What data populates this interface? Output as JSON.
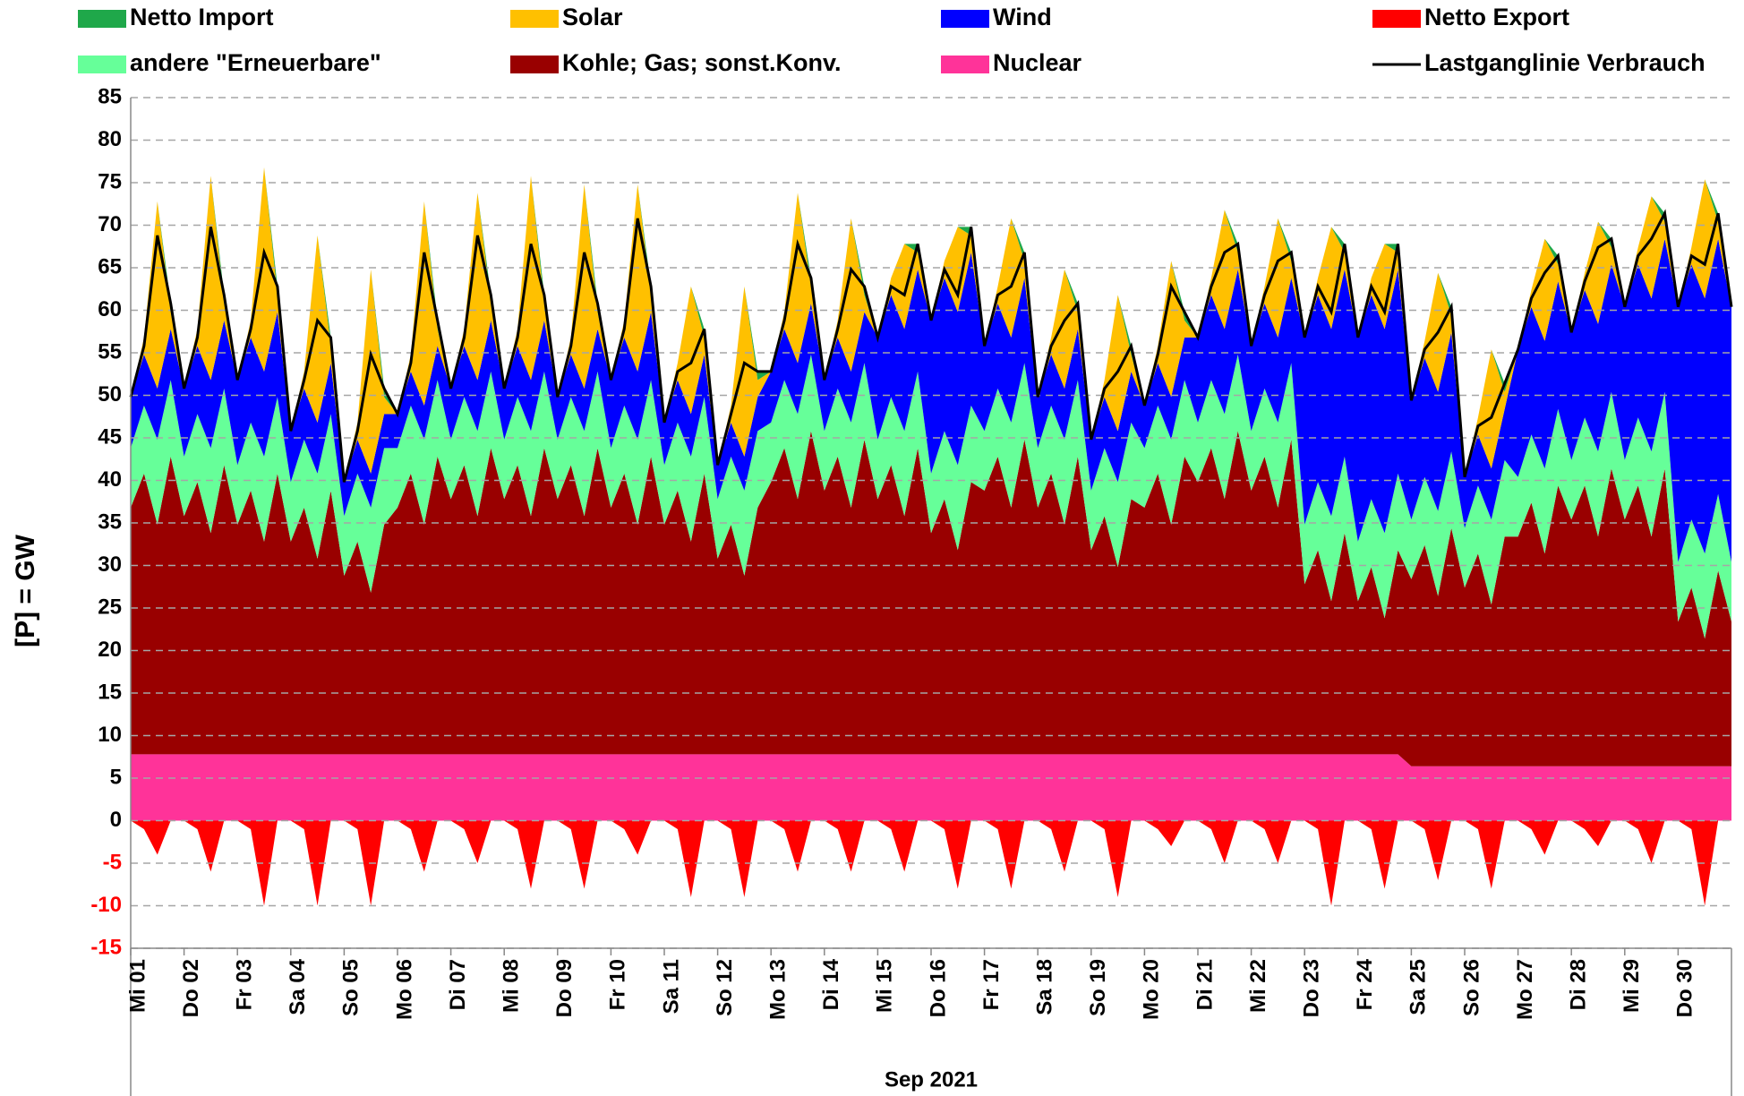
{
  "chart_data": {
    "type": "stacked_area",
    "xlabel": "Sep 2021",
    "ylabel": "[P]  =  GW",
    "xlim": [
      1,
      31
    ],
    "xticks": [
      {
        "value": 1,
        "label": "Mi 01"
      },
      {
        "value": 2,
        "label": "Do 02"
      },
      {
        "value": 3,
        "label": "Fr 03"
      },
      {
        "value": 4,
        "label": "Sa 04"
      },
      {
        "value": 5,
        "label": "So 05"
      },
      {
        "value": 6,
        "label": "Mo 06"
      },
      {
        "value": 7,
        "label": "Di 07"
      },
      {
        "value": 8,
        "label": "Mi 08"
      },
      {
        "value": 9,
        "label": "Do 09"
      },
      {
        "value": 10,
        "label": "Fr 10"
      },
      {
        "value": 11,
        "label": "Sa 11"
      },
      {
        "value": 12,
        "label": "So 12"
      },
      {
        "value": 13,
        "label": "Mo 13"
      },
      {
        "value": 14,
        "label": "Di 14"
      },
      {
        "value": 15,
        "label": "Mi 15"
      },
      {
        "value": 16,
        "label": "Do 16"
      },
      {
        "value": 17,
        "label": "Fr 17"
      },
      {
        "value": 18,
        "label": "Sa 18"
      },
      {
        "value": 19,
        "label": "So 19"
      },
      {
        "value": 20,
        "label": "Mo 20"
      },
      {
        "value": 21,
        "label": "Di 21"
      },
      {
        "value": 22,
        "label": "Mi 22"
      },
      {
        "value": 23,
        "label": "Do 23"
      },
      {
        "value": 24,
        "label": "Fr 24"
      },
      {
        "value": 25,
        "label": "Sa 25"
      },
      {
        "value": 26,
        "label": "So 26"
      },
      {
        "value": 27,
        "label": "Mo 27"
      },
      {
        "value": 28,
        "label": "Di 28"
      },
      {
        "value": 29,
        "label": "Mi 29"
      },
      {
        "value": 30,
        "label": "Do 30"
      }
    ],
    "ylim": [
      -15,
      85
    ],
    "yticks": [
      85,
      80,
      75,
      70,
      65,
      60,
      55,
      50,
      45,
      40,
      35,
      30,
      25,
      20,
      15,
      10,
      5,
      0,
      -5,
      -10,
      -15
    ],
    "grid": true,
    "x": [
      1,
      1.25,
      1.5,
      1.75,
      2,
      2.25,
      2.5,
      2.75,
      3,
      3.25,
      3.5,
      3.75,
      4,
      4.25,
      4.5,
      4.75,
      5,
      5.25,
      5.5,
      5.75,
      6,
      6.25,
      6.5,
      6.75,
      7,
      7.25,
      7.5,
      7.75,
      8,
      8.25,
      8.5,
      8.75,
      9,
      9.25,
      9.5,
      9.75,
      10,
      10.25,
      10.5,
      10.75,
      11,
      11.25,
      11.5,
      11.75,
      12,
      12.25,
      12.5,
      12.75,
      13,
      13.25,
      13.5,
      13.75,
      14,
      14.25,
      14.5,
      14.75,
      15,
      15.25,
      15.5,
      15.75,
      16,
      16.25,
      16.5,
      16.75,
      17,
      17.25,
      17.5,
      17.75,
      18,
      18.25,
      18.5,
      18.75,
      19,
      19.25,
      19.5,
      19.75,
      20,
      20.25,
      20.5,
      20.75,
      21,
      21.25,
      21.5,
      21.75,
      22,
      22.25,
      22.5,
      22.75,
      23,
      23.25,
      23.5,
      23.75,
      24,
      24.25,
      24.5,
      24.75,
      25,
      25.25,
      25.5,
      25.75,
      26,
      26.25,
      26.5,
      26.75,
      27,
      27.25,
      27.5,
      27.75,
      28,
      28.25,
      28.5,
      28.75,
      29,
      29.25,
      29.5,
      29.75,
      30,
      30.25,
      30.5,
      30.75,
      31
    ],
    "series": [
      {
        "name": "Netto Import",
        "color": "#1fa84a",
        "values": [
          0,
          0,
          0,
          1,
          0,
          0,
          0,
          1,
          0,
          0,
          0,
          1,
          0,
          0,
          0,
          1,
          0,
          0,
          0,
          1,
          0,
          0,
          0,
          1,
          0,
          0,
          0,
          1,
          0,
          0,
          0,
          1,
          0,
          0,
          0,
          1,
          0,
          0,
          0,
          1,
          0,
          0,
          0,
          1,
          0,
          0,
          0,
          1,
          0,
          0,
          0,
          1,
          0,
          0,
          0,
          1,
          0,
          0,
          0,
          1,
          0,
          0,
          0,
          1,
          0,
          0,
          0,
          1,
          0,
          0,
          0,
          1,
          0,
          0,
          0,
          1,
          0,
          0,
          0,
          1,
          0,
          0,
          0,
          1,
          0,
          0,
          0,
          1,
          0,
          0,
          0,
          1,
          0,
          0,
          0,
          1,
          0,
          0,
          0,
          1,
          0,
          0,
          0,
          1,
          0,
          0,
          0,
          1,
          0,
          0,
          0,
          1,
          0,
          0,
          0,
          1,
          0,
          0,
          0,
          1,
          0
        ]
      },
      {
        "name": "Solar",
        "color": "#ffc000",
        "values": [
          0,
          2,
          22,
          2,
          0,
          2,
          24,
          2,
          0,
          2,
          24,
          2,
          0,
          2,
          22,
          2,
          0,
          2,
          24,
          2,
          0,
          2,
          24,
          2,
          0,
          2,
          22,
          2,
          0,
          2,
          24,
          2,
          0,
          2,
          24,
          2,
          0,
          2,
          22,
          2,
          0,
          2,
          15,
          2,
          0,
          2,
          20,
          2,
          0,
          2,
          20,
          2,
          0,
          2,
          18,
          2,
          0,
          2,
          10,
          2,
          0,
          2,
          10,
          2,
          0,
          2,
          14,
          2,
          0,
          2,
          14,
          2,
          0,
          2,
          16,
          2,
          0,
          2,
          16,
          2,
          0,
          2,
          14,
          2,
          0,
          2,
          14,
          2,
          0,
          2,
          12,
          2,
          0,
          2,
          10,
          2,
          0,
          2,
          14,
          2,
          0,
          2,
          14,
          2,
          0,
          2,
          12,
          2,
          0,
          2,
          12,
          2,
          0,
          2,
          12,
          2,
          0,
          2,
          14,
          2,
          0
        ]
      },
      {
        "name": "Wind",
        "color": "#0000ff",
        "values": [
          6,
          6,
          6,
          6,
          8,
          8,
          8,
          8,
          10,
          10,
          10,
          10,
          6,
          6,
          6,
          6,
          4,
          4,
          4,
          4,
          4,
          4,
          4,
          4,
          6,
          6,
          6,
          6,
          6,
          6,
          6,
          6,
          5,
          5,
          5,
          5,
          8,
          8,
          8,
          8,
          5,
          5,
          5,
          5,
          4,
          4,
          4,
          4,
          6,
          6,
          6,
          6,
          6,
          6,
          6,
          6,
          12,
          12,
          12,
          12,
          18,
          18,
          18,
          18,
          10,
          10,
          10,
          10,
          6,
          6,
          6,
          6,
          6,
          6,
          6,
          6,
          5,
          5,
          5,
          5,
          10,
          10,
          10,
          10,
          10,
          10,
          10,
          10,
          22,
          22,
          22,
          22,
          24,
          24,
          24,
          24,
          14,
          14,
          14,
          14,
          6,
          6,
          6,
          6,
          15,
          15,
          15,
          15,
          15,
          15,
          15,
          15,
          18,
          18,
          18,
          18,
          30,
          30,
          30,
          30,
          30
        ]
      },
      {
        "name": "Netto Export",
        "color": "#ff0000",
        "values": [
          0,
          -1,
          -4,
          0,
          0,
          -1,
          -6,
          0,
          0,
          -1,
          -10,
          0,
          0,
          -1,
          -10,
          0,
          0,
          -1,
          -10,
          0,
          0,
          -1,
          -6,
          0,
          0,
          -1,
          -5,
          0,
          0,
          -1,
          -8,
          0,
          0,
          -1,
          -8,
          0,
          0,
          -1,
          -4,
          0,
          0,
          -1,
          -9,
          0,
          0,
          -1,
          -9,
          0,
          0,
          -1,
          -6,
          0,
          0,
          -1,
          -6,
          0,
          0,
          -1,
          -6,
          0,
          0,
          -1,
          -8,
          0,
          0,
          -1,
          -8,
          0,
          0,
          -1,
          -6,
          0,
          0,
          -1,
          -9,
          0,
          0,
          -1,
          -3,
          0,
          0,
          -1,
          -5,
          0,
          0,
          -1,
          -5,
          0,
          0,
          -1,
          -10,
          0,
          0,
          -1,
          -8,
          0,
          0,
          -1,
          -7,
          0,
          0,
          -1,
          -8,
          0,
          0,
          -1,
          -4,
          0,
          0,
          -1,
          -3,
          0,
          0,
          -1,
          -5,
          0,
          0,
          -1,
          -10,
          0,
          0
        ]
      },
      {
        "name": "andere \"Erneuerbare\"",
        "color": "#66ff99",
        "values": [
          7,
          8,
          10,
          9,
          7,
          8,
          10,
          9,
          7,
          8,
          10,
          9,
          7,
          8,
          10,
          9,
          7,
          8,
          10,
          9,
          7,
          8,
          10,
          9,
          7,
          8,
          10,
          9,
          7,
          8,
          10,
          9,
          7,
          8,
          10,
          9,
          7,
          8,
          10,
          9,
          7,
          8,
          10,
          9,
          7,
          8,
          10,
          9,
          7,
          8,
          10,
          9,
          7,
          8,
          10,
          9,
          7,
          8,
          10,
          9,
          7,
          8,
          10,
          9,
          7,
          8,
          10,
          9,
          7,
          8,
          10,
          9,
          7,
          8,
          10,
          9,
          7,
          8,
          10,
          9,
          7,
          8,
          10,
          9,
          7,
          8,
          10,
          9,
          7,
          8,
          10,
          9,
          7,
          8,
          10,
          9,
          7,
          8,
          10,
          9,
          7,
          8,
          10,
          9,
          7,
          8,
          10,
          9,
          7,
          8,
          10,
          9,
          7,
          8,
          10,
          9,
          7,
          8,
          10,
          9,
          7
        ]
      },
      {
        "name": "Kohle; Gas; sonst.Konv.",
        "color": "#990000",
        "values": [
          29,
          33,
          27,
          35,
          28,
          32,
          26,
          34,
          27,
          31,
          25,
          33,
          25,
          29,
          23,
          31,
          21,
          25,
          19,
          27,
          29,
          33,
          27,
          35,
          30,
          34,
          28,
          36,
          30,
          34,
          28,
          36,
          30,
          34,
          28,
          36,
          29,
          33,
          27,
          35,
          27,
          31,
          25,
          33,
          23,
          27,
          21,
          29,
          32,
          36,
          30,
          38,
          31,
          35,
          29,
          37,
          30,
          34,
          28,
          36,
          26,
          30,
          24,
          32,
          31,
          35,
          29,
          37,
          29,
          33,
          27,
          35,
          24,
          28,
          22,
          30,
          29,
          33,
          27,
          35,
          32,
          36,
          30,
          38,
          31,
          35,
          29,
          37,
          20,
          24,
          18,
          26,
          18,
          22,
          16,
          24,
          22,
          26,
          20,
          28,
          21,
          25,
          19,
          27,
          27,
          31,
          25,
          33,
          29,
          33,
          27,
          35,
          29,
          33,
          27,
          35,
          17,
          21,
          15,
          23,
          17
        ]
      },
      {
        "name": "Nuclear",
        "color": "#ff3399",
        "values": [
          7.8,
          7.8,
          7.8,
          7.8,
          7.8,
          7.8,
          7.8,
          7.8,
          7.8,
          7.8,
          7.8,
          7.8,
          7.8,
          7.8,
          7.8,
          7.8,
          7.8,
          7.8,
          7.8,
          7.8,
          7.8,
          7.8,
          7.8,
          7.8,
          7.8,
          7.8,
          7.8,
          7.8,
          7.8,
          7.8,
          7.8,
          7.8,
          7.8,
          7.8,
          7.8,
          7.8,
          7.8,
          7.8,
          7.8,
          7.8,
          7.8,
          7.8,
          7.8,
          7.8,
          7.8,
          7.8,
          7.8,
          7.8,
          7.8,
          7.8,
          7.8,
          7.8,
          7.8,
          7.8,
          7.8,
          7.8,
          7.8,
          7.8,
          7.8,
          7.8,
          7.8,
          7.8,
          7.8,
          7.8,
          7.8,
          7.8,
          7.8,
          7.8,
          7.8,
          7.8,
          7.8,
          7.8,
          7.8,
          7.8,
          7.8,
          7.8,
          7.8,
          7.8,
          7.8,
          7.8,
          7.8,
          7.8,
          7.8,
          7.8,
          7.8,
          7.8,
          7.8,
          7.8,
          7.8,
          7.8,
          7.8,
          7.8,
          7.8,
          7.8,
          7.8,
          7.8,
          6.4,
          6.4,
          6.4,
          6.4,
          6.4,
          6.4,
          6.4,
          6.4,
          6.4,
          6.4,
          6.4,
          6.4,
          6.4,
          6.4,
          6.4,
          6.4,
          6.4,
          6.4,
          6.4,
          6.4,
          6.4,
          6.4,
          6.4,
          6.4,
          6.4
        ]
      },
      {
        "name": "Lastganglinie Verbrauch",
        "type": "line",
        "color": "#000000",
        "values": [
          49.8,
          55.8,
          68.8,
          60.8,
          50.8,
          56.8,
          69.8,
          61.8,
          51.8,
          57.8,
          66.8,
          62.8,
          45.8,
          51.8,
          58.8,
          56.8,
          39.8,
          45.8,
          54.8,
          50.8,
          47.8,
          53.8,
          66.8,
          58.8,
          50.8,
          56.8,
          68.8,
          61.8,
          50.8,
          56.8,
          67.8,
          61.8,
          49.8,
          55.8,
          66.8,
          60.8,
          51.8,
          57.8,
          70.8,
          62.8,
          46.8,
          52.8,
          53.8,
          57.8,
          41.8,
          47.8,
          53.8,
          52.8,
          52.8,
          58.8,
          67.8,
          63.8,
          51.8,
          57.8,
          64.8,
          62.8,
          56.8,
          62.8,
          61.8,
          67.8,
          58.8,
          64.8,
          61.8,
          69.8,
          55.8,
          61.8,
          62.8,
          66.8,
          49.8,
          55.8,
          58.8,
          60.8,
          44.8,
          50.8,
          52.8,
          55.8,
          48.8,
          54.8,
          62.8,
          59.8,
          56.8,
          62.8,
          66.8,
          67.8,
          55.8,
          61.8,
          65.8,
          66.8,
          56.8,
          62.8,
          59.8,
          67.8,
          56.8,
          62.8,
          59.8,
          67.8,
          49.4,
          55.4,
          57.4,
          60.4,
          40.4,
          46.4,
          47.4,
          51.4,
          55.4,
          61.4,
          64.4,
          66.4,
          57.4,
          63.4,
          67.4,
          68.4,
          60.4,
          66.4,
          68.4,
          71.4,
          60.4,
          66.4,
          65.4,
          71.4,
          60.4
        ]
      }
    ]
  }
}
